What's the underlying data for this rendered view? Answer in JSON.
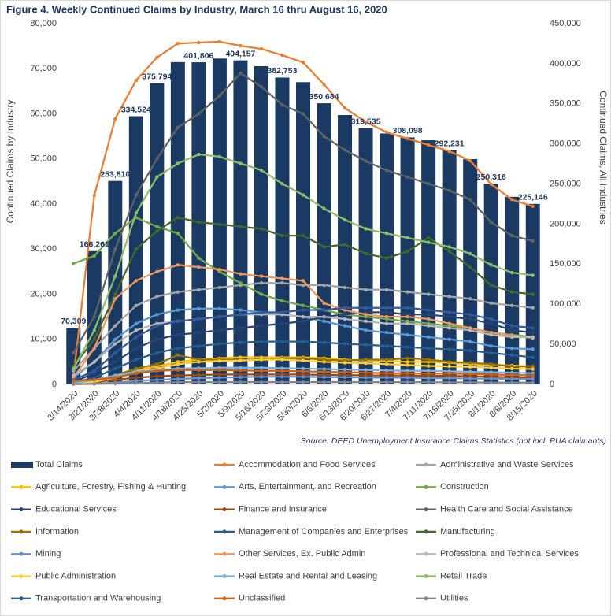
{
  "chart_data": {
    "type": "combo",
    "title": "Figure 4. Weekly Continued Claims by Industry, March 16 thru August 16, 2020",
    "ylabel": "Continued Claims by Industry",
    "y2label": "Continued Claims, All Industries",
    "source": "Source: DEED Unemployment Insurance Claims Statistics (not incl. PUA claimants)",
    "categories": [
      "3/14/2020",
      "3/21/2020",
      "3/28/2020",
      "4/4/2020",
      "4/11/2020",
      "4/18/2020",
      "4/25/2020",
      "5/2/2020",
      "5/9/2020",
      "5/16/2020",
      "5/23/2020",
      "5/30/2020",
      "6/6/2020",
      "6/13/2020",
      "6/20/2020",
      "6/27/2020",
      "7/4/2020",
      "7/11/2020",
      "7/18/2020",
      "7/25/2020",
      "8/1/2020",
      "8/8/2020",
      "8/15/2020"
    ],
    "ylim": [
      0,
      80000
    ],
    "yticks": [
      0,
      {
        "value": 10000,
        "label": "10,000"
      },
      {
        "value": 20000,
        "label": "20,000"
      },
      {
        "value": 30000,
        "label": "30,000"
      },
      {
        "value": 40000,
        "label": "40,000"
      },
      {
        "value": 50000,
        "label": "50,000"
      },
      {
        "value": 60000,
        "label": "60,000"
      },
      {
        "value": 70000,
        "label": "70,000"
      },
      {
        "value": 80000,
        "label": "80,000"
      }
    ],
    "y2lim": [
      0,
      450000
    ],
    "y2ticks": [
      0,
      {
        "value": 50000,
        "label": "50,000"
      },
      {
        "value": 100000,
        "label": "100,000"
      },
      {
        "value": 150000,
        "label": "150,000"
      },
      {
        "value": 200000,
        "label": "200,000"
      },
      {
        "value": 250000,
        "label": "250,000"
      },
      {
        "value": 300000,
        "label": "300,000"
      },
      {
        "value": 350000,
        "label": "350,000"
      },
      {
        "value": 400000,
        "label": "400,000"
      },
      {
        "value": 450000,
        "label": "450,000"
      }
    ],
    "grid": false,
    "legend": "bottom",
    "series": [
      {
        "name": "Total Claims",
        "type": "bar",
        "axis": "y2",
        "color": "#1a3a63",
        "values": [
          70309,
          166261,
          253810,
          334524,
          375794,
          402000,
          401806,
          406500,
          404157,
          397000,
          382753,
          377000,
          350684,
          336000,
          319535,
          313000,
          308098,
          304500,
          292231,
          281000,
          250316,
          234000,
          225146
        ],
        "value_labels": [
          "70,309",
          "166,261",
          "253,810",
          "334,524",
          "375,794",
          null,
          "401,806",
          null,
          "404,157",
          null,
          "382,753",
          null,
          "350,684",
          null,
          "319,535",
          null,
          "308,098",
          null,
          "292,231",
          null,
          "250,316",
          null,
          "225,146"
        ]
      },
      {
        "name": "Accommodation and Food Services",
        "type": "line",
        "color": "#ED7D31",
        "values": [
          1700,
          41900,
          58900,
          67400,
          72500,
          75600,
          75800,
          76000,
          75100,
          74400,
          73000,
          71400,
          66500,
          61300,
          58200,
          55900,
          54500,
          53100,
          51700,
          49600,
          44400,
          41000,
          39500
        ]
      },
      {
        "name": "Administrative and Waste Services",
        "type": "line",
        "color": "#A5A5A5",
        "values": [
          3000,
          8000,
          13000,
          17500,
          19500,
          20500,
          21000,
          21500,
          22000,
          22500,
          22500,
          22000,
          22000,
          21500,
          21000,
          21000,
          20500,
          20000,
          19500,
          19000,
          18000,
          17500,
          17000
        ]
      },
      {
        "name": "Agriculture, Forestry, Fishing & Hunting",
        "type": "line",
        "color": "#FFC000",
        "values": [
          300,
          800,
          1500,
          3000,
          4000,
          5000,
          5500,
          5800,
          6000,
          6000,
          6000,
          6000,
          5800,
          5500,
          5300,
          5200,
          5000,
          5000,
          4800,
          4500,
          4300,
          4200,
          4000
        ]
      },
      {
        "name": "Arts, Entertainment, and Recreation",
        "type": "line",
        "color": "#5B9BD5",
        "values": [
          1500,
          5000,
          10000,
          13500,
          15500,
          16500,
          16800,
          16800,
          16500,
          16000,
          15500,
          15000,
          14000,
          13000,
          12000,
          11500,
          11000,
          10500,
          10000,
          9500,
          8500,
          8000,
          7800
        ]
      },
      {
        "name": "Construction",
        "type": "line",
        "color": "#70AD47",
        "values": [
          26800,
          28500,
          33500,
          37000,
          35000,
          33500,
          28000,
          25000,
          22500,
          20000,
          18500,
          17500,
          16500,
          15500,
          15000,
          14500,
          14000,
          13500,
          13000,
          12500,
          11500,
          11000,
          10500
        ]
      },
      {
        "name": "Educational Services",
        "type": "line",
        "color": "#264478",
        "values": [
          500,
          2500,
          5000,
          8000,
          10000,
          11000,
          11500,
          12000,
          12500,
          13000,
          13500,
          14000,
          15000,
          15500,
          16000,
          16000,
          15500,
          15500,
          15000,
          14500,
          13500,
          12000,
          11500
        ]
      },
      {
        "name": "Finance and Insurance",
        "type": "line",
        "color": "#9E480E",
        "values": [
          200,
          500,
          1000,
          1500,
          1800,
          2000,
          2100,
          2200,
          2200,
          2200,
          2200,
          2200,
          2100,
          2100,
          2000,
          2000,
          2000,
          1900,
          1900,
          1800,
          1700,
          1600,
          1500
        ]
      },
      {
        "name": "Health Care and Social Assistance",
        "type": "line",
        "color": "#636363",
        "values": [
          7000,
          15000,
          30000,
          42000,
          50000,
          57000,
          60000,
          64000,
          69000,
          66000,
          62000,
          60000,
          55000,
          52000,
          49500,
          47500,
          46000,
          44500,
          43000,
          41000,
          36000,
          33000,
          31800
        ]
      },
      {
        "name": "Information",
        "type": "line",
        "color": "#997300",
        "values": [
          300,
          1000,
          2000,
          3500,
          4500,
          6500,
          5500,
          5500,
          5500,
          5500,
          5800,
          5800,
          5500,
          5300,
          5500,
          5500,
          5800,
          5500,
          5000,
          4800,
          4500,
          4000,
          4000
        ]
      },
      {
        "name": "Management of Companies and Enterprises",
        "type": "line",
        "color": "#255E91",
        "values": [
          400,
          1500,
          3500,
          5500,
          7000,
          8000,
          8500,
          9000,
          9300,
          9500,
          9500,
          9500,
          9300,
          9000,
          8800,
          8500,
          8300,
          8000,
          7800,
          7500,
          7000,
          6500,
          6000
        ]
      },
      {
        "name": "Manufacturing",
        "type": "line",
        "color": "#43682B",
        "values": [
          4000,
          10000,
          20000,
          30000,
          34000,
          37000,
          36000,
          35500,
          35000,
          34500,
          33000,
          33000,
          30500,
          31000,
          29000,
          28000,
          29500,
          32500,
          29500,
          26000,
          22000,
          20500,
          20000
        ]
      },
      {
        "name": "Mining",
        "type": "line",
        "color": "#698ED0",
        "values": [
          100,
          200,
          400,
          800,
          1000,
          1200,
          1400,
          1500,
          1600,
          1700,
          1700,
          1700,
          1600,
          1600,
          1500,
          1500,
          1500,
          1400,
          1400,
          1300,
          1300,
          1200,
          1200
        ]
      },
      {
        "name": "Other Services, Ex. Public Admin",
        "type": "line",
        "color": "#F1975A",
        "values": [
          1500,
          8000,
          19000,
          23000,
          25000,
          26500,
          26000,
          25500,
          24500,
          24000,
          23500,
          23000,
          18000,
          16500,
          15500,
          15000,
          15000,
          14500,
          13500,
          12500,
          11500,
          10800,
          10300
        ]
      },
      {
        "name": "Professional and Technical Services",
        "type": "line",
        "color": "#B7B7B7",
        "values": [
          2000,
          5000,
          9000,
          12000,
          13500,
          14000,
          14500,
          15000,
          15500,
          15500,
          15500,
          15000,
          15000,
          14500,
          14000,
          13500,
          13500,
          13000,
          12500,
          12000,
          11000,
          10500,
          10500
        ]
      },
      {
        "name": "Public Administration",
        "type": "line",
        "color": "#FFCD33",
        "values": [
          200,
          600,
          1500,
          2500,
          3500,
          4500,
          5000,
          5200,
          5300,
          5500,
          5500,
          5300,
          5000,
          4800,
          4700,
          4500,
          4300,
          4100,
          4000,
          3900,
          3700,
          3500,
          3400
        ]
      },
      {
        "name": "Real Estate and Rental and Leasing",
        "type": "line",
        "color": "#7CAFDD",
        "values": [
          300,
          1000,
          2000,
          2800,
          3200,
          3500,
          3600,
          3700,
          3700,
          3700,
          3600,
          3500,
          3400,
          3300,
          3200,
          3100,
          3000,
          3000,
          2900,
          2800,
          2700,
          2600,
          2500
        ]
      },
      {
        "name": "Retail Trade",
        "type": "line",
        "color": "#8CC168",
        "values": [
          3500,
          12000,
          24000,
          38000,
          46000,
          49000,
          51000,
          50500,
          49000,
          47500,
          44500,
          42000,
          39000,
          36500,
          34500,
          33500,
          32500,
          31500,
          30500,
          29000,
          26500,
          24800,
          24200
        ]
      },
      {
        "name": "Transportation and Warehousing",
        "type": "line",
        "color": "#335AA1",
        "values": [
          1000,
          3000,
          7000,
          10500,
          13000,
          14000,
          14500,
          15000,
          15500,
          16000,
          16000,
          16500,
          16500,
          17000,
          17000,
          17000,
          17000,
          16500,
          16000,
          15500,
          14500,
          13000,
          12500
        ]
      },
      {
        "name": "Unclassified",
        "type": "line",
        "color": "#D26012",
        "values": [
          800,
          1000,
          1500,
          2500,
          3000,
          3200,
          3200,
          3200,
          3100,
          3000,
          3000,
          2900,
          2800,
          2700,
          2600,
          2500,
          2500,
          2400,
          2400,
          2300,
          2200,
          2100,
          2000
        ]
      },
      {
        "name": "Utilities",
        "type": "line",
        "color": "#848484",
        "values": [
          50,
          100,
          200,
          300,
          400,
          500,
          500,
          500,
          500,
          500,
          500,
          500,
          500,
          500,
          500,
          500,
          500,
          500,
          450,
          450,
          400,
          400,
          400
        ]
      }
    ]
  }
}
